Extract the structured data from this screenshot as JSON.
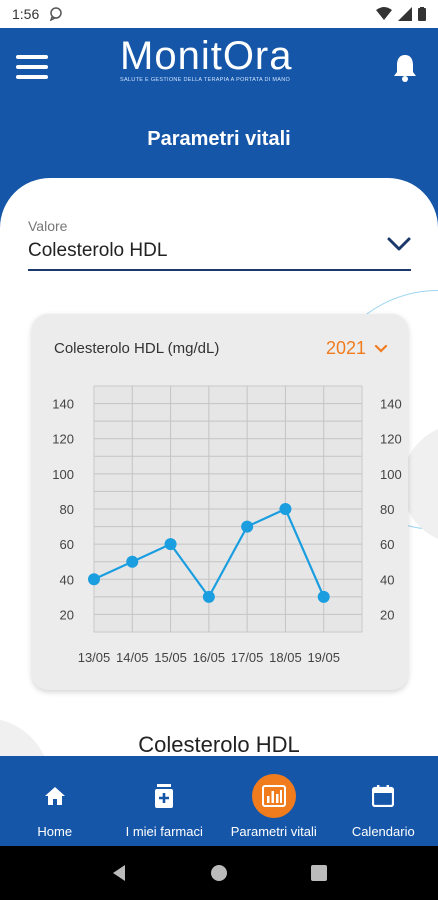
{
  "status": {
    "time": "1:56"
  },
  "header": {
    "logo_word": "MonitOra",
    "logo_tagline": "SALUTE E GESTIONE DELLA TERAPIA A PORTATA DI MANO",
    "page_title": "Parametri vitali"
  },
  "selector": {
    "label": "Valore",
    "value": "Colesterolo HDL"
  },
  "card": {
    "title": "Colesterolo HDL (mg/dL)",
    "year": "2021"
  },
  "chart_data": {
    "type": "line",
    "title": "Colesterolo HDL (mg/dL)",
    "categories": [
      "13/05",
      "14/05",
      "15/05",
      "16/05",
      "17/05",
      "18/05",
      "19/05"
    ],
    "values": [
      40,
      50,
      60,
      30,
      70,
      80,
      30
    ],
    "ylim": [
      10,
      150
    ],
    "yticks": [
      20,
      40,
      60,
      80,
      100,
      120,
      140
    ],
    "grid": true,
    "line_color": "#1a9ee0"
  },
  "section_title": "Colesterolo HDL",
  "nav": {
    "items": [
      {
        "label": "Home",
        "icon": "home-icon"
      },
      {
        "label": "I miei farmaci",
        "icon": "medicine-icon"
      },
      {
        "label": "Parametri vitali",
        "icon": "chart-icon"
      },
      {
        "label": "Calendario",
        "icon": "calendar-icon"
      }
    ],
    "active_index": 2
  },
  "colors": {
    "brand_blue": "#1556a8",
    "accent_orange": "#f07c1e",
    "line_blue": "#1a9ee0"
  }
}
